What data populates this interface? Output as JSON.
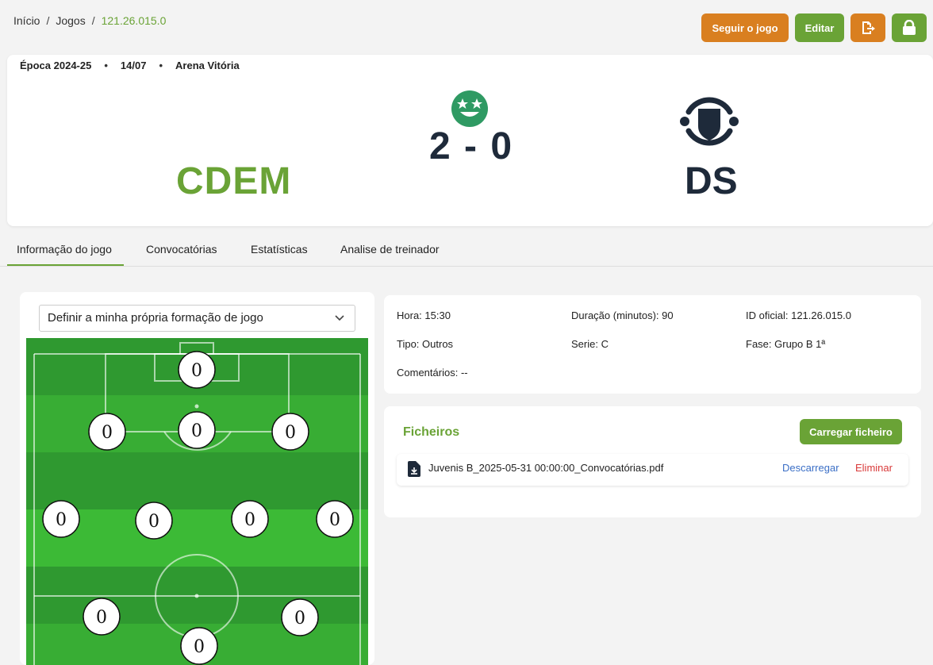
{
  "breadcrumb": {
    "home": "Início",
    "games": "Jogos",
    "current": "121.26.015.0"
  },
  "actions": {
    "follow_label": "Seguir o jogo",
    "edit_label": "Editar",
    "export_icon": "exit-document-icon",
    "lock_icon": "lock-icon"
  },
  "match": {
    "season": "Época 2024-25",
    "date": "14/07",
    "venue": "Arena Vitória",
    "home_team": "CDEM",
    "away_team": "DS",
    "score": "2 - 0",
    "result_icon": "star-eyes-face-icon",
    "away_logo": "ds-crest-icon"
  },
  "tabs": [
    "Informação do jogo",
    "Convocatórias",
    "Estatísticas",
    "Analise de treinador"
  ],
  "formation": {
    "select_value": "Definir a minha própria formação de jogo",
    "player_number": "0"
  },
  "info": {
    "hora_label": "Hora:",
    "hora": "15:30",
    "duracao_label": "Duração (minutos):",
    "duracao": "90",
    "id_label": "ID oficial:",
    "id": "121.26.015.0",
    "tipo_label": "Tipo:",
    "tipo": "Outros",
    "serie_label": "Serie:",
    "serie": "C",
    "fase_label": "Fase:",
    "fase": "Grupo B 1ª",
    "comentarios_label": "Comentários:",
    "comentarios": "--"
  },
  "files": {
    "title": "Ficheiros",
    "upload_label": "Carregar ficheiro",
    "items": [
      {
        "name": "Juvenis B_2025-05-31 00:00:00_Convocatórias.pdf",
        "download_label": "Descarregar",
        "delete_label": "Eliminar"
      }
    ]
  },
  "colors": {
    "accent_green": "#6aa336",
    "accent_orange": "#d97f20",
    "navy": "#1e2a3a"
  }
}
